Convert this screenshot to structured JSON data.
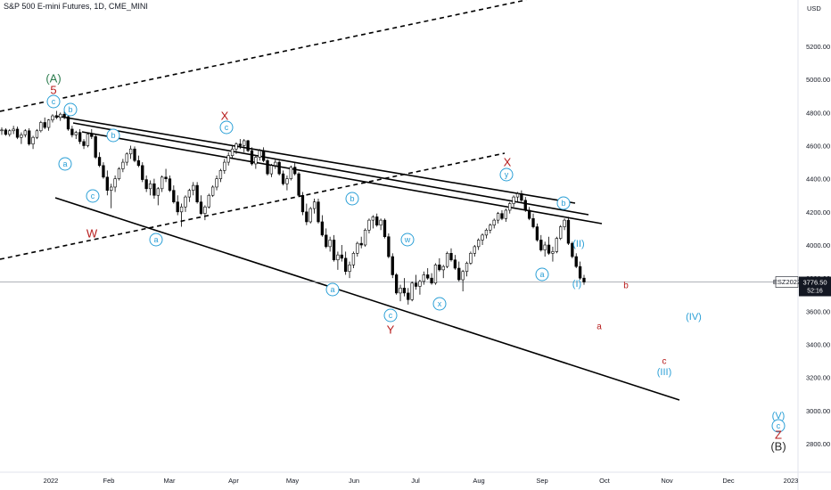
{
  "header": {
    "title": "S&P 500 E-mini Futures, 1D, CME_MINI"
  },
  "price_axis": {
    "currency": "USD",
    "ticks": [
      "5200.00",
      "5000.00",
      "4800.00",
      "4600.00",
      "4400.00",
      "4200.00",
      "4000.00",
      "3800.00",
      "3600.00",
      "3400.00",
      "3200.00",
      "3000.00",
      "2800.00"
    ],
    "current_price": "3776.50",
    "countdown": "52:16",
    "symbol_tag": "ESZ2022"
  },
  "time_axis": {
    "ticks": [
      "2022",
      "Feb",
      "Mar",
      "Apr",
      "May",
      "Jun",
      "Jul",
      "Aug",
      "Sep",
      "Oct",
      "Nov",
      "Dec",
      "2023"
    ]
  },
  "colors": {
    "up": "#ffffff",
    "down": "#000000",
    "wick": "#000000",
    "teal": "#2a9fd6",
    "red": "#b71c1c",
    "green": "#2e7d4f",
    "price_line": "#9598a1",
    "axis_bg": "#ffffff",
    "text": "#131722"
  },
  "wave_labels": [
    {
      "text": "(A)",
      "style": "green"
    },
    {
      "text": "5",
      "style": "red"
    },
    {
      "text": "c",
      "style": "circle"
    },
    {
      "text": "b",
      "style": "circle"
    },
    {
      "text": "a",
      "style": "circle"
    },
    {
      "text": "c",
      "style": "circle"
    },
    {
      "text": "W",
      "style": "red"
    },
    {
      "text": "a",
      "style": "circle"
    },
    {
      "text": "b",
      "style": "circle"
    },
    {
      "text": "X",
      "style": "red"
    },
    {
      "text": "c",
      "style": "circle"
    },
    {
      "text": "b",
      "style": "circle"
    },
    {
      "text": "a",
      "style": "circle"
    },
    {
      "text": "c",
      "style": "circle"
    },
    {
      "text": "Y",
      "style": "red"
    },
    {
      "text": "w",
      "style": "circle"
    },
    {
      "text": "x",
      "style": "circle"
    },
    {
      "text": "X",
      "style": "red"
    },
    {
      "text": "y",
      "style": "circle"
    },
    {
      "text": "b",
      "style": "circle"
    },
    {
      "text": "a",
      "style": "circle"
    },
    {
      "text": "(II)",
      "style": "teal"
    },
    {
      "text": "(I)",
      "style": "teal"
    },
    {
      "text": "b",
      "style": "redsmall"
    },
    {
      "text": "a",
      "style": "redsmall"
    },
    {
      "text": "(IV)",
      "style": "teal"
    },
    {
      "text": "c",
      "style": "redsmall"
    },
    {
      "text": "(III)",
      "style": "teal"
    },
    {
      "text": "(V)",
      "style": "teal"
    },
    {
      "text": "c",
      "style": "circle"
    },
    {
      "text": "Z",
      "style": "red"
    },
    {
      "text": "(B)",
      "style": "dark"
    }
  ],
  "chart_data": {
    "type": "candlestick",
    "title": "S&P 500 E-mini Futures, 1D, CME_MINI",
    "ylim": [
      2640,
      5420
    ],
    "yticks": [
      5200,
      5000,
      4800,
      4600,
      4400,
      4200,
      4000,
      3800,
      3600,
      3400,
      3200,
      3000,
      2800
    ],
    "xticks": [
      "2022",
      "Feb",
      "Mar",
      "Apr",
      "May",
      "Jun",
      "Jul",
      "Aug",
      "Sep",
      "Oct",
      "Nov",
      "Dec",
      "2023"
    ],
    "last_price": 3776.5,
    "grid": false,
    "ohlc": [
      [
        4690,
        4710,
        4665,
        4695
      ],
      [
        4695,
        4705,
        4660,
        4668
      ],
      [
        4668,
        4700,
        4655,
        4690
      ],
      [
        4690,
        4720,
        4670,
        4700
      ],
      [
        4700,
        4715,
        4640,
        4650
      ],
      [
        4650,
        4680,
        4610,
        4665
      ],
      [
        4665,
        4700,
        4650,
        4690
      ],
      [
        4690,
        4705,
        4600,
        4610
      ],
      [
        4610,
        4660,
        4580,
        4650
      ],
      [
        4650,
        4700,
        4640,
        4690
      ],
      [
        4690,
        4750,
        4680,
        4740
      ],
      [
        4740,
        4770,
        4700,
        4710
      ],
      [
        4710,
        4760,
        4690,
        4755
      ],
      [
        4755,
        4790,
        4740,
        4780
      ],
      [
        4780,
        4810,
        4760,
        4770
      ],
      [
        4770,
        4800,
        4750,
        4790
      ],
      [
        4790,
        4808,
        4760,
        4775
      ],
      [
        4775,
        4785,
        4690,
        4700
      ],
      [
        4700,
        4720,
        4650,
        4665
      ],
      [
        4665,
        4690,
        4640,
        4680
      ],
      [
        4680,
        4700,
        4610,
        4625
      ],
      [
        4625,
        4640,
        4580,
        4600
      ],
      [
        4600,
        4680,
        4590,
        4670
      ],
      [
        4670,
        4700,
        4640,
        4655
      ],
      [
        4655,
        4670,
        4520,
        4530
      ],
      [
        4530,
        4560,
        4470,
        4480
      ],
      [
        4480,
        4500,
        4400,
        4410
      ],
      [
        4410,
        4450,
        4300,
        4330
      ],
      [
        4330,
        4370,
        4222,
        4350
      ],
      [
        4350,
        4420,
        4320,
        4400
      ],
      [
        4400,
        4470,
        4390,
        4460
      ],
      [
        4460,
        4520,
        4440,
        4500
      ],
      [
        4500,
        4560,
        4480,
        4550
      ],
      [
        4550,
        4600,
        4520,
        4580
      ],
      [
        4580,
        4595,
        4500,
        4510
      ],
      [
        4510,
        4540,
        4470,
        4480
      ],
      [
        4480,
        4500,
        4380,
        4395
      ],
      [
        4395,
        4420,
        4320,
        4340
      ],
      [
        4340,
        4390,
        4300,
        4370
      ],
      [
        4370,
        4400,
        4280,
        4300
      ],
      [
        4300,
        4350,
        4240,
        4340
      ],
      [
        4340,
        4420,
        4320,
        4410
      ],
      [
        4410,
        4460,
        4380,
        4400
      ],
      [
        4400,
        4420,
        4320,
        4330
      ],
      [
        4330,
        4360,
        4250,
        4260
      ],
      [
        4260,
        4300,
        4180,
        4200
      ],
      [
        4200,
        4250,
        4110,
        4230
      ],
      [
        4230,
        4300,
        4200,
        4290
      ],
      [
        4290,
        4340,
        4260,
        4330
      ],
      [
        4330,
        4380,
        4300,
        4360
      ],
      [
        4360,
        4380,
        4250,
        4260
      ],
      [
        4260,
        4300,
        4180,
        4190
      ],
      [
        4190,
        4240,
        4150,
        4230
      ],
      [
        4230,
        4310,
        4220,
        4300
      ],
      [
        4300,
        4360,
        4290,
        4350
      ],
      [
        4350,
        4420,
        4330,
        4400
      ],
      [
        4400,
        4460,
        4380,
        4450
      ],
      [
        4450,
        4520,
        4430,
        4500
      ],
      [
        4500,
        4560,
        4480,
        4540
      ],
      [
        4540,
        4600,
        4520,
        4580
      ],
      [
        4580,
        4620,
        4550,
        4610
      ],
      [
        4610,
        4640,
        4580,
        4600
      ],
      [
        4600,
        4640,
        4560,
        4630
      ],
      [
        4630,
        4635,
        4560,
        4570
      ],
      [
        4570,
        4590,
        4480,
        4490
      ],
      [
        4490,
        4540,
        4460,
        4530
      ],
      [
        4530,
        4580,
        4510,
        4570
      ],
      [
        4570,
        4590,
        4500,
        4510
      ],
      [
        4510,
        4520,
        4420,
        4430
      ],
      [
        4430,
        4490,
        4410,
        4480
      ],
      [
        4480,
        4520,
        4460,
        4500
      ],
      [
        4500,
        4510,
        4420,
        4430
      ],
      [
        4430,
        4450,
        4360,
        4370
      ],
      [
        4370,
        4420,
        4330,
        4400
      ],
      [
        4400,
        4480,
        4390,
        4470
      ],
      [
        4470,
        4500,
        4420,
        4430
      ],
      [
        4430,
        4440,
        4290,
        4300
      ],
      [
        4300,
        4320,
        4180,
        4200
      ],
      [
        4200,
        4250,
        4120,
        4140
      ],
      [
        4140,
        4230,
        4130,
        4220
      ],
      [
        4220,
        4280,
        4190,
        4260
      ],
      [
        4260,
        4280,
        4130,
        4140
      ],
      [
        4140,
        4180,
        4050,
        4060
      ],
      [
        4060,
        4100,
        3980,
        3990
      ],
      [
        3990,
        4050,
        3960,
        4030
      ],
      [
        4030,
        4060,
        3900,
        3910
      ],
      [
        3910,
        3960,
        3850,
        3940
      ],
      [
        3940,
        4000,
        3900,
        3920
      ],
      [
        3920,
        3960,
        3820,
        3840
      ],
      [
        3840,
        3900,
        3800,
        3880
      ],
      [
        3880,
        3960,
        3860,
        3950
      ],
      [
        3950,
        4020,
        3930,
        4010
      ],
      [
        4010,
        4050,
        3980,
        4000
      ],
      [
        4000,
        4100,
        3990,
        4090
      ],
      [
        4090,
        4160,
        4070,
        4150
      ],
      [
        4150,
        4180,
        4100,
        4170
      ],
      [
        4170,
        4190,
        4110,
        4120
      ],
      [
        4120,
        4160,
        4090,
        4150
      ],
      [
        4150,
        4160,
        4040,
        4050
      ],
      [
        4050,
        4070,
        3920,
        3930
      ],
      [
        3930,
        3950,
        3800,
        3820
      ],
      [
        3820,
        3830,
        3700,
        3710
      ],
      [
        3710,
        3760,
        3660,
        3740
      ],
      [
        3740,
        3800,
        3690,
        3710
      ],
      [
        3710,
        3740,
        3640,
        3670
      ],
      [
        3670,
        3780,
        3660,
        3770
      ],
      [
        3770,
        3820,
        3730,
        3750
      ],
      [
        3750,
        3790,
        3700,
        3780
      ],
      [
        3780,
        3840,
        3760,
        3820
      ],
      [
        3820,
        3860,
        3790,
        3800
      ],
      [
        3800,
        3830,
        3760,
        3770
      ],
      [
        3770,
        3890,
        3760,
        3880
      ],
      [
        3880,
        3920,
        3840,
        3850
      ],
      [
        3850,
        3880,
        3800,
        3870
      ],
      [
        3870,
        3960,
        3860,
        3950
      ],
      [
        3950,
        3980,
        3900,
        3910
      ],
      [
        3910,
        3940,
        3850,
        3860
      ],
      [
        3860,
        3900,
        3780,
        3790
      ],
      [
        3790,
        3850,
        3720,
        3840
      ],
      [
        3840,
        3900,
        3810,
        3890
      ],
      [
        3890,
        3960,
        3880,
        3950
      ],
      [
        3950,
        4000,
        3930,
        3990
      ],
      [
        3990,
        4040,
        3970,
        4030
      ],
      [
        4030,
        4070,
        4000,
        4060
      ],
      [
        4060,
        4100,
        4040,
        4090
      ],
      [
        4090,
        4130,
        4070,
        4120
      ],
      [
        4120,
        4160,
        4100,
        4150
      ],
      [
        4150,
        4200,
        4130,
        4190
      ],
      [
        4190,
        4210,
        4150,
        4160
      ],
      [
        4160,
        4220,
        4140,
        4210
      ],
      [
        4210,
        4260,
        4190,
        4250
      ],
      [
        4250,
        4300,
        4230,
        4290
      ],
      [
        4290,
        4320,
        4260,
        4310
      ],
      [
        4310,
        4330,
        4260,
        4270
      ],
      [
        4270,
        4290,
        4200,
        4210
      ],
      [
        4210,
        4230,
        4150,
        4160
      ],
      [
        4160,
        4190,
        4100,
        4110
      ],
      [
        4110,
        4130,
        4020,
        4030
      ],
      [
        4030,
        4060,
        3960,
        3970
      ],
      [
        3970,
        4020,
        3930,
        4000
      ],
      [
        4000,
        4050,
        3940,
        3950
      ],
      [
        3950,
        3990,
        3900,
        3960
      ],
      [
        3960,
        4050,
        3950,
        4040
      ],
      [
        4040,
        4120,
        4030,
        4110
      ],
      [
        4110,
        4160,
        4090,
        4150
      ],
      [
        4150,
        4170,
        4000,
        4010
      ],
      [
        4010,
        4020,
        3920,
        3930
      ],
      [
        3930,
        3950,
        3860,
        3870
      ],
      [
        3870,
        3900,
        3790,
        3800
      ],
      [
        3800,
        3820,
        3760,
        3776.5
      ]
    ]
  }
}
